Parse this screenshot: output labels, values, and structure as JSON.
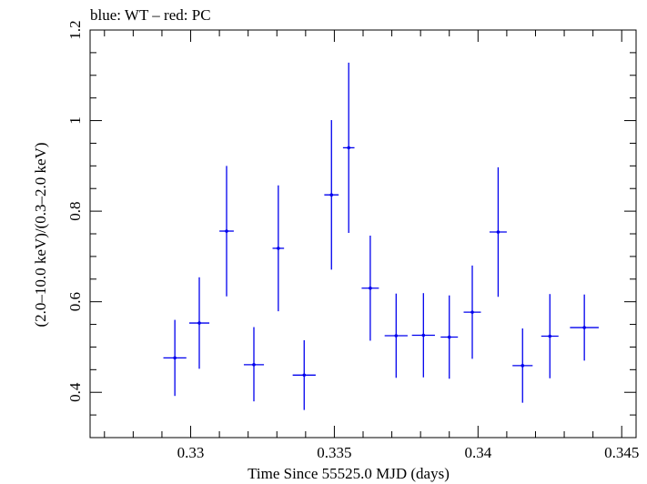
{
  "chart_data": {
    "type": "scatter",
    "title": "blue: WT – red: PC",
    "xlabel": "Time Since 55525.0 MJD (days)",
    "ylabel": "(2.0–10.0 keV)/(0.3–2.0 keV)",
    "xlim": [
      0.3265,
      0.3455
    ],
    "ylim": [
      0.3,
      1.2
    ],
    "x_ticks": [
      {
        "value": 0.33,
        "label": "0.33"
      },
      {
        "value": 0.335,
        "label": "0.335"
      },
      {
        "value": 0.34,
        "label": "0.34"
      },
      {
        "value": 0.345,
        "label": "0.345"
      }
    ],
    "y_ticks": [
      {
        "value": 0.4,
        "label": "0.4"
      },
      {
        "value": 0.6,
        "label": "0.6"
      },
      {
        "value": 0.8,
        "label": "0.8"
      },
      {
        "value": 1.0,
        "label": "1"
      },
      {
        "value": 1.2,
        "label": "1.2"
      }
    ],
    "x_minor_step": 0.001,
    "y_minor_step": 0.05,
    "grid": false,
    "legend": "none",
    "series": [
      {
        "color": "#0000ee",
        "points": [
          {
            "x": 0.32945,
            "xerr": 0.0004,
            "y": 0.476,
            "yerr_low": 0.084,
            "yerr_high": 0.084
          },
          {
            "x": 0.3303,
            "xerr": 0.00035,
            "y": 0.553,
            "yerr_low": 0.101,
            "yerr_high": 0.101
          },
          {
            "x": 0.33125,
            "xerr": 0.00025,
            "y": 0.756,
            "yerr_low": 0.144,
            "yerr_high": 0.144
          },
          {
            "x": 0.3322,
            "xerr": 0.00035,
            "y": 0.461,
            "yerr_low": 0.081,
            "yerr_high": 0.083
          },
          {
            "x": 0.33305,
            "xerr": 0.0002,
            "y": 0.718,
            "yerr_low": 0.139,
            "yerr_high": 0.139
          },
          {
            "x": 0.33395,
            "xerr": 0.0004,
            "y": 0.438,
            "yerr_low": 0.077,
            "yerr_high": 0.077
          },
          {
            "x": 0.3349,
            "xerr": 0.00025,
            "y": 0.836,
            "yerr_low": 0.165,
            "yerr_high": 0.165
          },
          {
            "x": 0.3355,
            "xerr": 0.0002,
            "y": 0.94,
            "yerr_low": 0.188,
            "yerr_high": 0.188
          },
          {
            "x": 0.33625,
            "xerr": 0.0003,
            "y": 0.63,
            "yerr_low": 0.116,
            "yerr_high": 0.116
          },
          {
            "x": 0.33715,
            "xerr": 0.0004,
            "y": 0.525,
            "yerr_low": 0.093,
            "yerr_high": 0.093
          },
          {
            "x": 0.3381,
            "xerr": 0.0004,
            "y": 0.526,
            "yerr_low": 0.093,
            "yerr_high": 0.093
          },
          {
            "x": 0.339,
            "xerr": 0.0003,
            "y": 0.522,
            "yerr_low": 0.092,
            "yerr_high": 0.092
          },
          {
            "x": 0.3398,
            "xerr": 0.0003,
            "y": 0.577,
            "yerr_low": 0.103,
            "yerr_high": 0.103
          },
          {
            "x": 0.3407,
            "xerr": 0.0003,
            "y": 0.754,
            "yerr_low": 0.143,
            "yerr_high": 0.143
          },
          {
            "x": 0.34155,
            "xerr": 0.00035,
            "y": 0.459,
            "yerr_low": 0.082,
            "yerr_high": 0.082
          },
          {
            "x": 0.3425,
            "xerr": 0.0003,
            "y": 0.524,
            "yerr_low": 0.093,
            "yerr_high": 0.093
          },
          {
            "x": 0.3437,
            "xerr": 0.0005,
            "y": 0.543,
            "yerr_low": 0.073,
            "yerr_high": 0.073
          }
        ]
      }
    ]
  }
}
